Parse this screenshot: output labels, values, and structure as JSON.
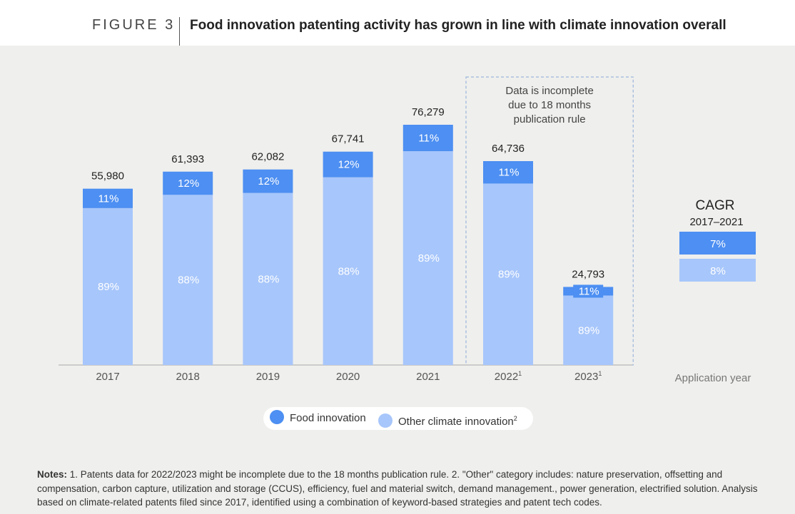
{
  "header": {
    "figure_label": "FIGURE 3",
    "title": "Food innovation patenting activity has grown in line with climate innovation overall"
  },
  "colors": {
    "food": "#4d8ff2",
    "other": "#a7c6fb",
    "box": "#8aa8d6"
  },
  "chart_data": {
    "type": "bar",
    "stacked": true,
    "categories": [
      "2017",
      "2018",
      "2019",
      "2020",
      "2021",
      "2022",
      "2023"
    ],
    "category_superscripts": [
      "",
      "",
      "",
      "",
      "",
      "1",
      "1"
    ],
    "totals": [
      55980,
      61393,
      62082,
      67741,
      76279,
      64736,
      24793
    ],
    "total_labels": [
      "55,980",
      "61,393",
      "62,082",
      "67,741",
      "76,279",
      "64,736",
      "24,793"
    ],
    "series": [
      {
        "name": "Other climate innovation",
        "percent": [
          89,
          88,
          88,
          88,
          89,
          89,
          89
        ]
      },
      {
        "name": "Food innovation",
        "percent": [
          11,
          12,
          12,
          12,
          11,
          11,
          11
        ]
      }
    ],
    "xlabel": "Application year",
    "ylim": [
      0,
      80000
    ],
    "annotation": [
      "Data is incomplete",
      "due to 18 months",
      "publication rule"
    ],
    "annotation_categories": [
      "2022",
      "2023"
    ],
    "cagr": {
      "title": "CAGR",
      "period": "2017–2021",
      "food": "7%",
      "other": "8%"
    },
    "legend": {
      "food": "Food innovation",
      "other": "Other climate innovation",
      "other_superscript": "2"
    }
  },
  "notes": {
    "label": "Notes:",
    "text": " 1. Patents data for 2022/2023 might be incomplete due to the 18 months publication rule. 2. \"Other\" category includes: nature preservation, offsetting and compensation, carbon capture, utilization and storage (CCUS), efficiency, fuel and material switch, demand management., power generation, electrified solution. Analysis based on climate-related patents filed since 2017, identified using a combination of keyword-based strategies and patent tech codes."
  }
}
